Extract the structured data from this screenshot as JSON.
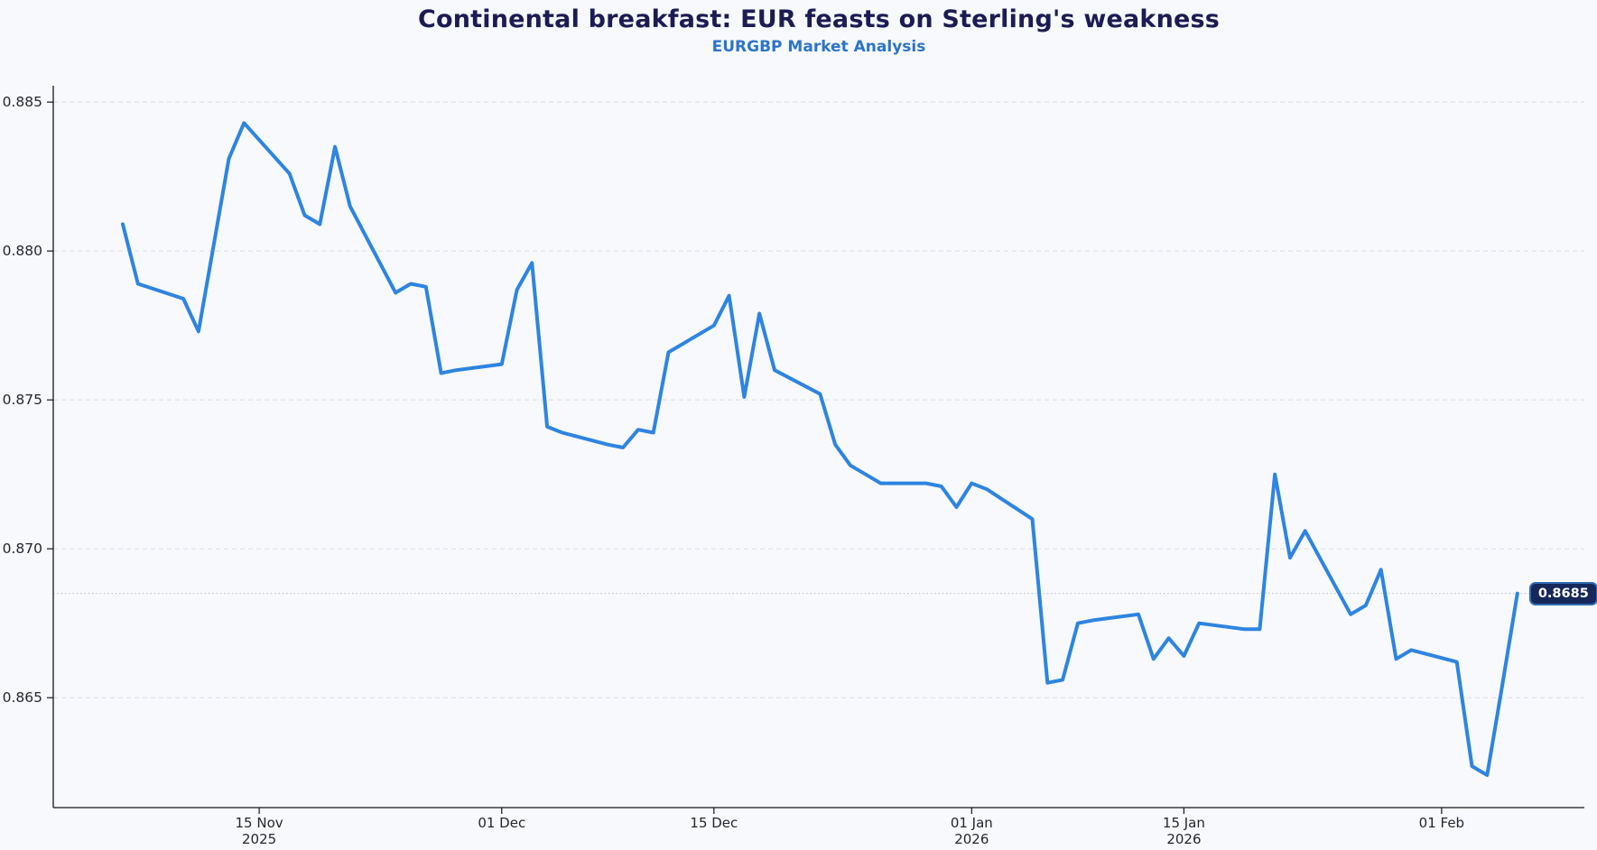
{
  "header": {
    "title": "Continental breakfast: EUR feasts on Sterling's weakness",
    "subtitle": "EURGBP Market Analysis"
  },
  "chart_data": {
    "type": "line",
    "title": "Continental breakfast: EUR feasts on Sterling's weakness",
    "subtitle": "EURGBP Market Analysis",
    "xlabel": "",
    "ylabel": "",
    "grid": true,
    "legend": "none",
    "ylim": [
      0.86131,
      0.88555
    ],
    "xlim": [
      "2025-11-01T10:00:00Z",
      "2026-02-10T10:00:00Z"
    ],
    "y_ticks": [
      0.885,
      0.88,
      0.875,
      0.87,
      0.865
    ],
    "x_ticks": [
      {
        "date": "2025-11-15",
        "line1": "15 Nov",
        "line2": "2025"
      },
      {
        "date": "2025-12-01",
        "line1": "01 Dec",
        "line2": ""
      },
      {
        "date": "2025-12-15",
        "line1": "15 Dec",
        "line2": ""
      },
      {
        "date": "2026-01-01",
        "line1": "01 Jan",
        "line2": "2026"
      },
      {
        "date": "2026-01-15",
        "line1": "15 Jan",
        "line2": "2026"
      },
      {
        "date": "2026-02-01",
        "line1": "01 Feb",
        "line2": ""
      }
    ],
    "current_level": 0.8685,
    "last_price": {
      "label": "0.8685",
      "value": 0.8685,
      "date": "2026-02-06"
    },
    "series": [
      {
        "name": "EURGBP",
        "color": "#2e84e0",
        "dates": [
          "2025-11-06",
          "2025-11-07",
          "2025-11-10",
          "2025-11-11",
          "2025-11-12",
          "2025-11-13",
          "2025-11-14",
          "2025-11-17",
          "2025-11-18",
          "2025-11-19",
          "2025-11-20",
          "2025-11-21",
          "2025-11-24",
          "2025-11-25",
          "2025-11-26",
          "2025-11-27",
          "2025-11-28",
          "2025-12-01",
          "2025-12-02",
          "2025-12-03",
          "2025-12-04",
          "2025-12-05",
          "2025-12-08",
          "2025-12-09",
          "2025-12-10",
          "2025-12-11",
          "2025-12-12",
          "2025-12-15",
          "2025-12-16",
          "2025-12-17",
          "2025-12-18",
          "2025-12-19",
          "2025-12-22",
          "2025-12-23",
          "2025-12-24",
          "2025-12-25",
          "2025-12-26",
          "2025-12-29",
          "2025-12-30",
          "2025-12-31",
          "2026-01-01",
          "2026-01-02",
          "2026-01-05",
          "2026-01-06",
          "2026-01-07",
          "2026-01-08",
          "2026-01-09",
          "2026-01-12",
          "2026-01-13",
          "2026-01-14",
          "2026-01-15",
          "2026-01-16",
          "2026-01-19",
          "2026-01-20",
          "2026-01-21",
          "2026-01-22",
          "2026-01-23",
          "2026-01-26",
          "2026-01-27",
          "2026-01-28",
          "2026-01-29",
          "2026-01-30",
          "2026-02-02",
          "2026-02-03",
          "2026-02-04",
          "2026-02-05",
          "2026-02-06"
        ],
        "values": [
          0.8809,
          0.8789,
          0.8784,
          0.8773,
          0.8802,
          0.8831,
          0.8843,
          0.8826,
          0.8812,
          0.8809,
          0.8835,
          0.8815,
          0.8786,
          0.8789,
          0.8788,
          0.8759,
          0.876,
          0.8762,
          0.8787,
          0.8796,
          0.8741,
          0.8739,
          0.8735,
          0.8734,
          0.874,
          0.8739,
          0.8766,
          0.8775,
          0.8785,
          0.8751,
          0.8779,
          0.876,
          0.8752,
          0.8735,
          0.8728,
          0.8725,
          0.8722,
          0.8722,
          0.8721,
          0.8714,
          0.8722,
          0.872,
          0.871,
          0.8655,
          0.8656,
          0.8675,
          0.8676,
          0.8678,
          0.8663,
          0.867,
          0.8664,
          0.8675,
          0.8673,
          0.8673,
          0.8725,
          0.8697,
          0.8706,
          0.8678,
          0.8681,
          0.8693,
          0.8663,
          0.8666,
          0.8662,
          0.8627,
          0.8624,
          0.8654,
          0.8685
        ]
      }
    ],
    "colors": {
      "background": "#f7f9fc",
      "line": "#2e84e0",
      "title": "#1c1b52",
      "subtitle": "#2d74c8",
      "grid": "#dcdfe6",
      "dotted_level": "#c0c4ce",
      "axis": "#15151a",
      "tick_label": "#262630",
      "badge_bg": "#16275a",
      "badge_border": "#2f6ab0",
      "badge_text": "#ffffff"
    }
  }
}
